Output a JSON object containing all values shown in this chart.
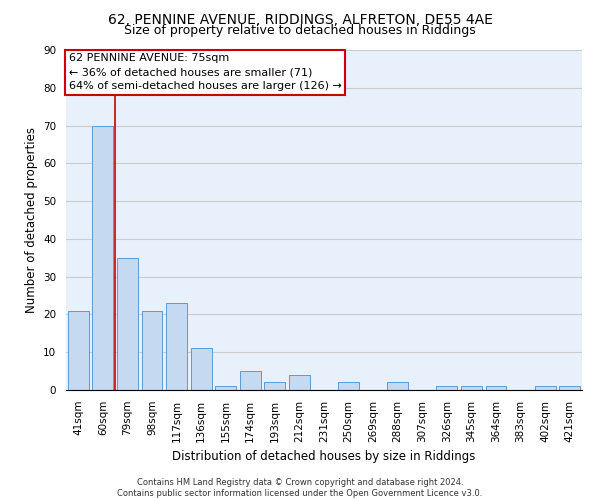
{
  "title1": "62, PENNINE AVENUE, RIDDINGS, ALFRETON, DE55 4AE",
  "title2": "Size of property relative to detached houses in Riddings",
  "xlabel": "Distribution of detached houses by size in Riddings",
  "ylabel": "Number of detached properties",
  "categories": [
    "41sqm",
    "60sqm",
    "79sqm",
    "98sqm",
    "117sqm",
    "136sqm",
    "155sqm",
    "174sqm",
    "193sqm",
    "212sqm",
    "231sqm",
    "250sqm",
    "269sqm",
    "288sqm",
    "307sqm",
    "326sqm",
    "345sqm",
    "364sqm",
    "383sqm",
    "402sqm",
    "421sqm"
  ],
  "values": [
    21,
    70,
    35,
    21,
    23,
    11,
    1,
    5,
    2,
    4,
    0,
    2,
    0,
    2,
    0,
    1,
    1,
    1,
    0,
    1,
    1
  ],
  "bar_color": "#c5d9f0",
  "bar_edge_color": "#5b9bd5",
  "annotation_box_text": "62 PENNINE AVENUE: 75sqm\n← 36% of detached houses are smaller (71)\n64% of semi-detached houses are larger (126) →",
  "annotation_box_color": "#ffffff",
  "annotation_box_edge_color": "#cc0000",
  "vline_color": "#cc0000",
  "ylim": [
    0,
    90
  ],
  "yticks": [
    0,
    10,
    20,
    30,
    40,
    50,
    60,
    70,
    80,
    90
  ],
  "grid_color": "#cccccc",
  "background_color": "#e8f0fb",
  "footer": "Contains HM Land Registry data © Crown copyright and database right 2024.\nContains public sector information licensed under the Open Government Licence v3.0.",
  "title_fontsize": 10,
  "subtitle_fontsize": 9,
  "axis_label_fontsize": 8.5,
  "tick_fontsize": 7.5,
  "annotation_fontsize": 8,
  "footer_fontsize": 6
}
